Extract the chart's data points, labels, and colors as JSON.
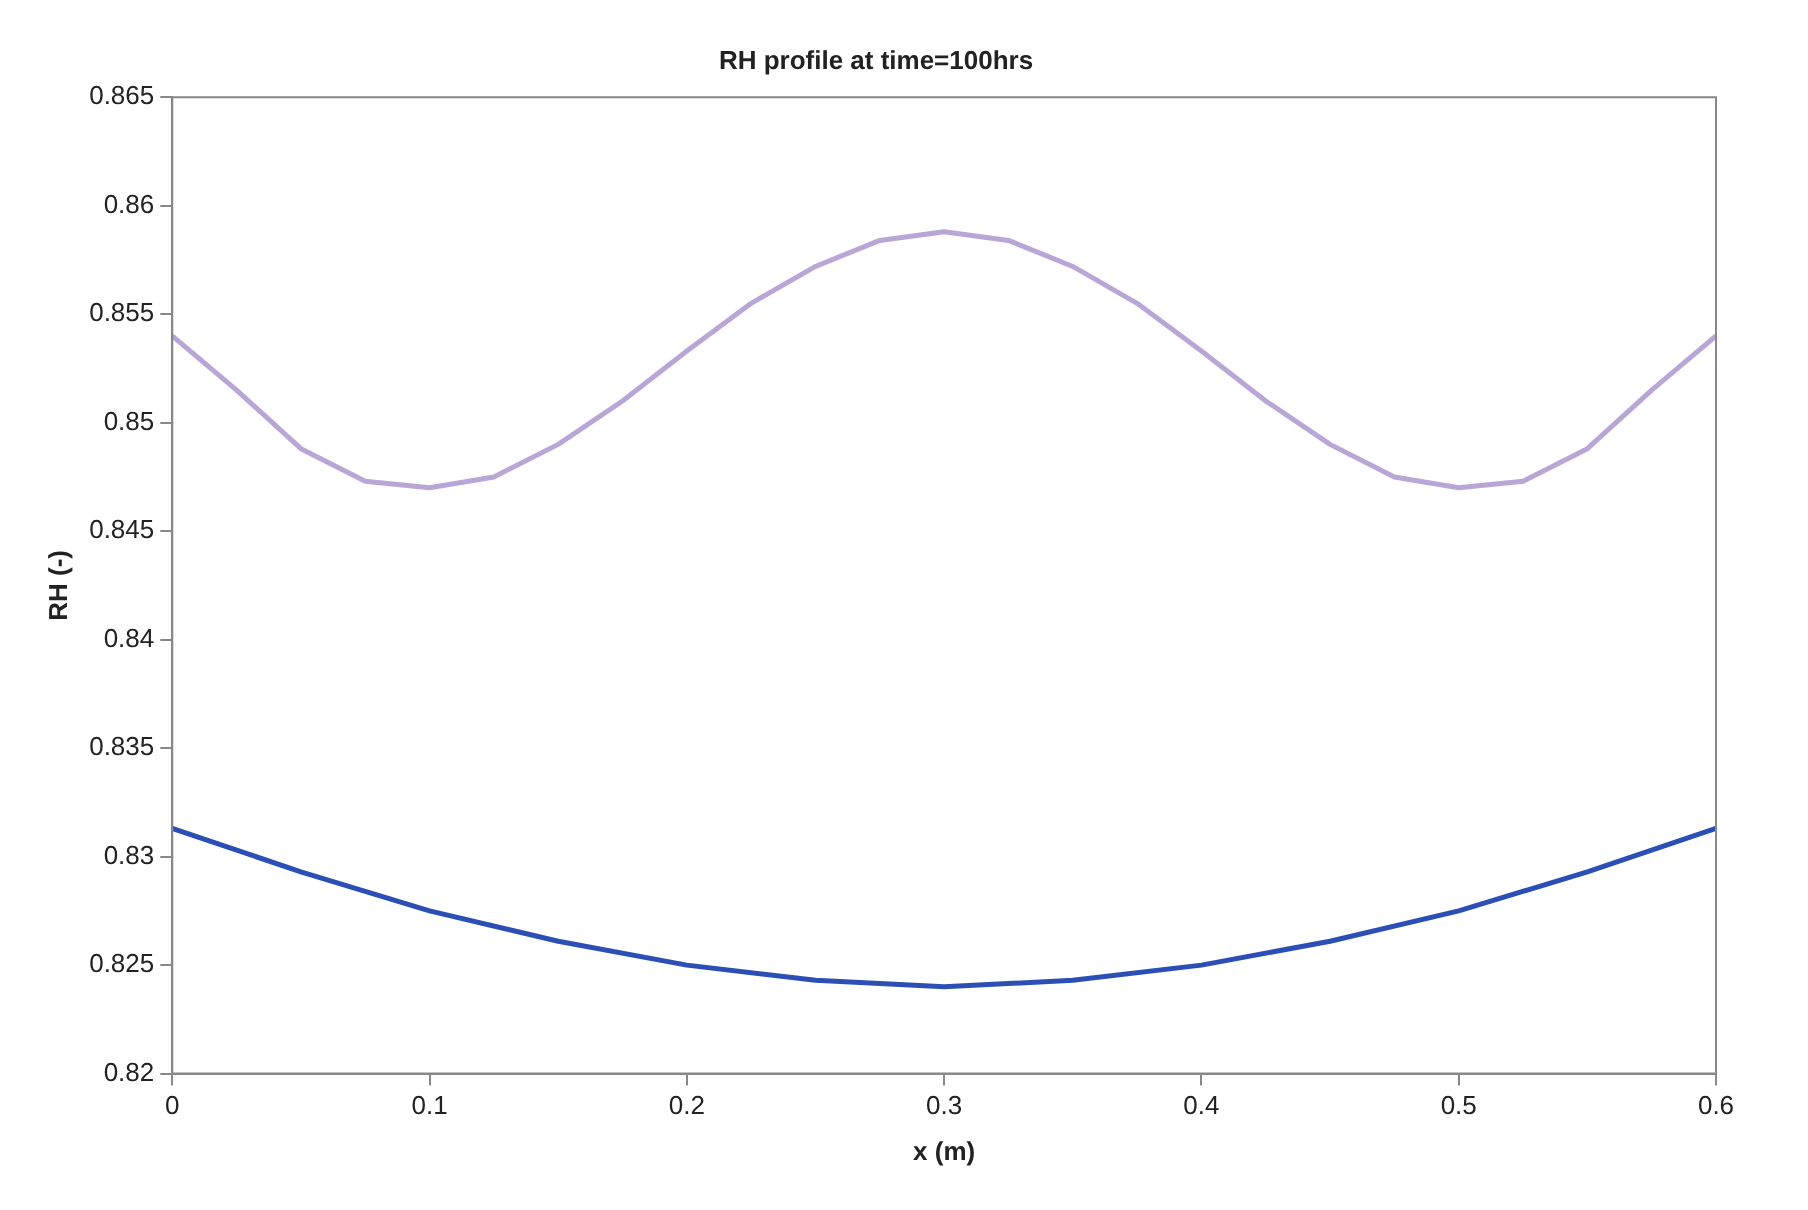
{
  "chart_data": {
    "type": "line",
    "title": "RH profile at time=100hrs",
    "xlabel": "x (m)",
    "ylabel": "RH (-)",
    "xlim": [
      0,
      0.6
    ],
    "xticks": [
      0,
      0.1,
      0.2,
      0.3,
      0.4,
      0.5,
      0.6
    ],
    "ylim": [
      0.82,
      0.865
    ],
    "yticks": [
      0.82,
      0.825,
      0.83,
      0.835,
      0.84,
      0.845,
      0.85,
      0.855,
      0.86,
      0.865
    ],
    "grid": false,
    "legend": false,
    "marker": "none",
    "line_style": "solid",
    "series": [
      {
        "color": "#2b4fb5",
        "x": [
          0,
          0.05,
          0.1,
          0.15,
          0.2,
          0.25,
          0.3,
          0.35,
          0.4,
          0.45,
          0.5,
          0.55,
          0.6
        ],
        "values": [
          0.8313,
          0.8293,
          0.8275,
          0.8261,
          0.825,
          0.8243,
          0.824,
          0.8243,
          0.825,
          0.8261,
          0.8275,
          0.8293,
          0.8313
        ]
      },
      {
        "color": "#b9a6d6",
        "x": [
          0,
          0.025,
          0.05,
          0.075,
          0.1,
          0.125,
          0.15,
          0.175,
          0.2,
          0.225,
          0.25,
          0.275,
          0.3,
          0.325,
          0.35,
          0.375,
          0.4,
          0.425,
          0.45,
          0.475,
          0.5,
          0.525,
          0.55,
          0.575,
          0.6
        ],
        "values": [
          0.854,
          0.8515,
          0.8488,
          0.8473,
          0.847,
          0.8475,
          0.849,
          0.851,
          0.8533,
          0.8555,
          0.8572,
          0.8584,
          0.8588,
          0.8584,
          0.8572,
          0.8555,
          0.8533,
          0.851,
          0.849,
          0.8475,
          0.847,
          0.8473,
          0.8488,
          0.8515,
          0.854
        ]
      }
    ]
  }
}
